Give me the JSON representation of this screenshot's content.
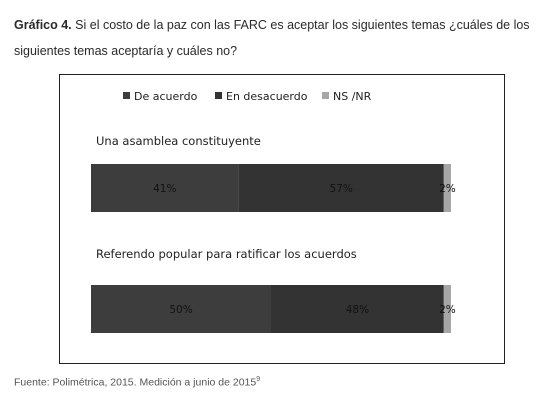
{
  "caption": {
    "label": "Gráfico 4.",
    "text": "Si el costo de la paz con las FARC es aceptar los siguientes temas ¿cuáles de los siguientes temas aceptaría y cuáles no?"
  },
  "source": {
    "text": "Fuente: Polimétrica, 2015. Medición a junio de 2015",
    "footnote": "9"
  },
  "chart_data": {
    "type": "bar",
    "orientation": "horizontal",
    "stacked": true,
    "legend_position": "top",
    "grid": false,
    "xlim": [
      0,
      100
    ],
    "categories": [
      "Una asamblea constituyente",
      "Referendo popular para ratificar los acuerdos"
    ],
    "series": [
      {
        "name": "De acuerdo",
        "color": "#3d3d3d",
        "values": [
          41,
          50
        ],
        "labels": [
          "41%",
          "50%"
        ]
      },
      {
        "name": "En desacuerdo",
        "color": "#333333",
        "values": [
          57,
          48
        ],
        "labels": [
          "57%",
          "48%"
        ]
      },
      {
        "name": "NS /NR",
        "color": "#a6a6a6",
        "values": [
          2,
          2
        ],
        "labels": [
          "2%",
          "2%"
        ]
      }
    ]
  }
}
